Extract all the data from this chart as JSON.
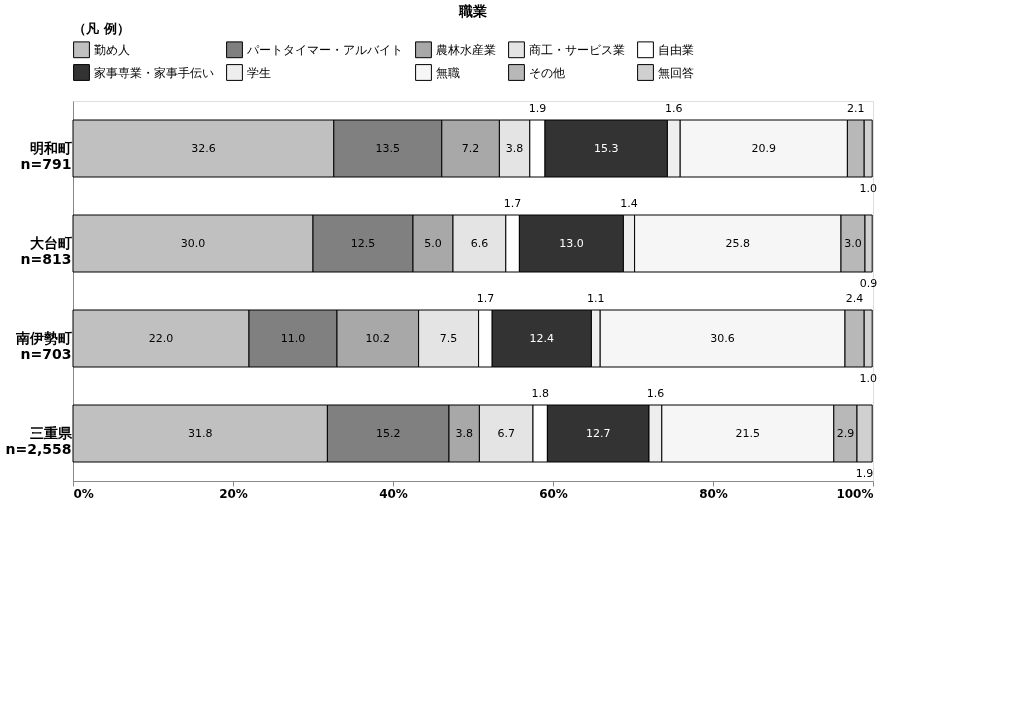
{
  "chart_data": {
    "type": "bar",
    "orientation": "horizontal",
    "stacked": true,
    "title": "職業",
    "legend_title": "（凡 例）",
    "legend": "top",
    "categories": [
      "明和町\nn=791",
      "大台町\nn=813",
      "南伊勢町\nn=703",
      "三重県\nn=2,558"
    ],
    "series": [
      {
        "name": "勤め人",
        "color": "#c0c0c0",
        "values": [
          32.6,
          30.0,
          22.0,
          31.8
        ]
      },
      {
        "name": "パートタイマー・アルバイト",
        "color": "#808080",
        "values": [
          13.5,
          12.5,
          11.0,
          15.2
        ]
      },
      {
        "name": "農林水産業",
        "color": "#a8a8a8",
        "values": [
          7.2,
          5.0,
          10.2,
          3.8
        ]
      },
      {
        "name": "商工・サービス業",
        "color": "#e4e4e4",
        "values": [
          3.8,
          6.6,
          7.5,
          6.7
        ]
      },
      {
        "name": "自由業",
        "color": "#ffffff",
        "values": [
          1.9,
          1.7,
          1.7,
          1.8
        ]
      },
      {
        "name": "家事専業・家事手伝い",
        "color": "#333333",
        "values": [
          15.3,
          13.0,
          12.4,
          12.7
        ]
      },
      {
        "name": "学生",
        "color": "#eeeeee",
        "values": [
          1.6,
          1.4,
          1.1,
          1.6
        ]
      },
      {
        "name": "無職",
        "color": "#f6f6f6",
        "values": [
          20.9,
          25.8,
          30.6,
          21.5
        ]
      },
      {
        "name": "その他",
        "color": "#b8b8b8",
        "values": [
          2.1,
          3.0,
          2.4,
          2.9
        ]
      },
      {
        "name": "無回答",
        "color": "#d0d0d0",
        "values": [
          1.0,
          0.9,
          1.0,
          1.9
        ]
      }
    ],
    "xlim": [
      0,
      100
    ],
    "xticks": [
      {
        "value": 0,
        "label": "0%"
      },
      {
        "value": 20,
        "label": "20%"
      },
      {
        "value": 40,
        "label": "40%"
      },
      {
        "value": 60,
        "label": "60%"
      },
      {
        "value": 80,
        "label": "80%"
      },
      {
        "value": 100,
        "label": "100%"
      }
    ],
    "value_labels": [
      [
        "32.6",
        "30.0",
        "22.0",
        "31.8"
      ],
      [
        "13.5",
        "12.5",
        "11.0",
        "15.2"
      ],
      [
        "7.2",
        "5.0",
        "10.2",
        "3.8"
      ],
      [
        "3.8",
        "6.6",
        "7.5",
        "6.7"
      ],
      [
        "1.9",
        "1.7",
        "1.7",
        "1.8"
      ],
      [
        "15.3",
        "13.0",
        "12.4",
        "12.7"
      ],
      [
        "1.6",
        "1.4",
        "1.1",
        "1.6"
      ],
      [
        "20.9",
        "25.8",
        "30.6",
        "21.5"
      ],
      [
        "2.1",
        "3.0",
        "2.4",
        "2.9"
      ],
      [
        "1.0",
        "0.9",
        "1.0",
        "1.9"
      ]
    ],
    "grid": false
  }
}
